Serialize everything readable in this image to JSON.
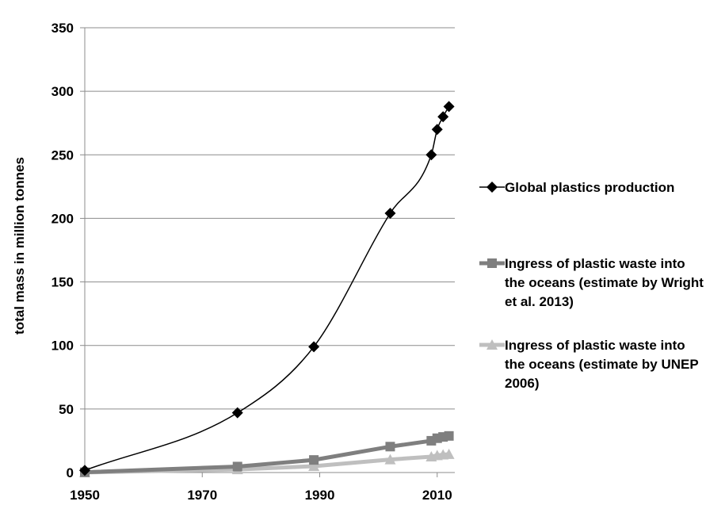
{
  "chart_data": {
    "type": "line",
    "title": "",
    "xlabel": "",
    "ylabel": "total mass in million tonnes",
    "xlim": [
      1950,
      2013
    ],
    "ylim": [
      0,
      350
    ],
    "x_ticks": [
      1950,
      1970,
      1990,
      2010
    ],
    "y_ticks": [
      0,
      50,
      100,
      150,
      200,
      250,
      300,
      350
    ],
    "grid": "horizontal",
    "legend_position": "right",
    "series": [
      {
        "name": "Global plastics production",
        "color": "#000000",
        "marker": "diamond",
        "smooth": true,
        "x": [
          1950,
          1976,
          1989,
          2002,
          2009,
          2010,
          2011,
          2012
        ],
        "y": [
          1.7,
          47,
          99,
          204,
          250,
          270,
          280,
          288
        ]
      },
      {
        "name": "Ingress of plastic waste into the oceans (estimate by Wright et al. 2013)",
        "legend_lines": [
          "Ingress of plastic waste into",
          "the oceans (estimate by Wright",
          "et al. 2013)"
        ],
        "color": "#7f7f7f",
        "marker": "square",
        "smooth": false,
        "x": [
          1950,
          1976,
          1989,
          2002,
          2009,
          2010,
          2011,
          2012
        ],
        "y": [
          0.2,
          4.7,
          9.9,
          20.4,
          25,
          27,
          28,
          28.8
        ]
      },
      {
        "name": "Ingress of plastic waste into the oceans (estimate by UNEP 2006)",
        "legend_lines": [
          "Ingress of plastic waste into",
          "the oceans (estimate by UNEP",
          "2006)"
        ],
        "color": "#bfbfbf",
        "marker": "triangle",
        "smooth": false,
        "x": [
          1950,
          1976,
          1989,
          2002,
          2009,
          2010,
          2011,
          2012
        ],
        "y": [
          0.1,
          2.4,
          5,
          10.2,
          12.5,
          13.5,
          14,
          14.4
        ]
      }
    ]
  }
}
